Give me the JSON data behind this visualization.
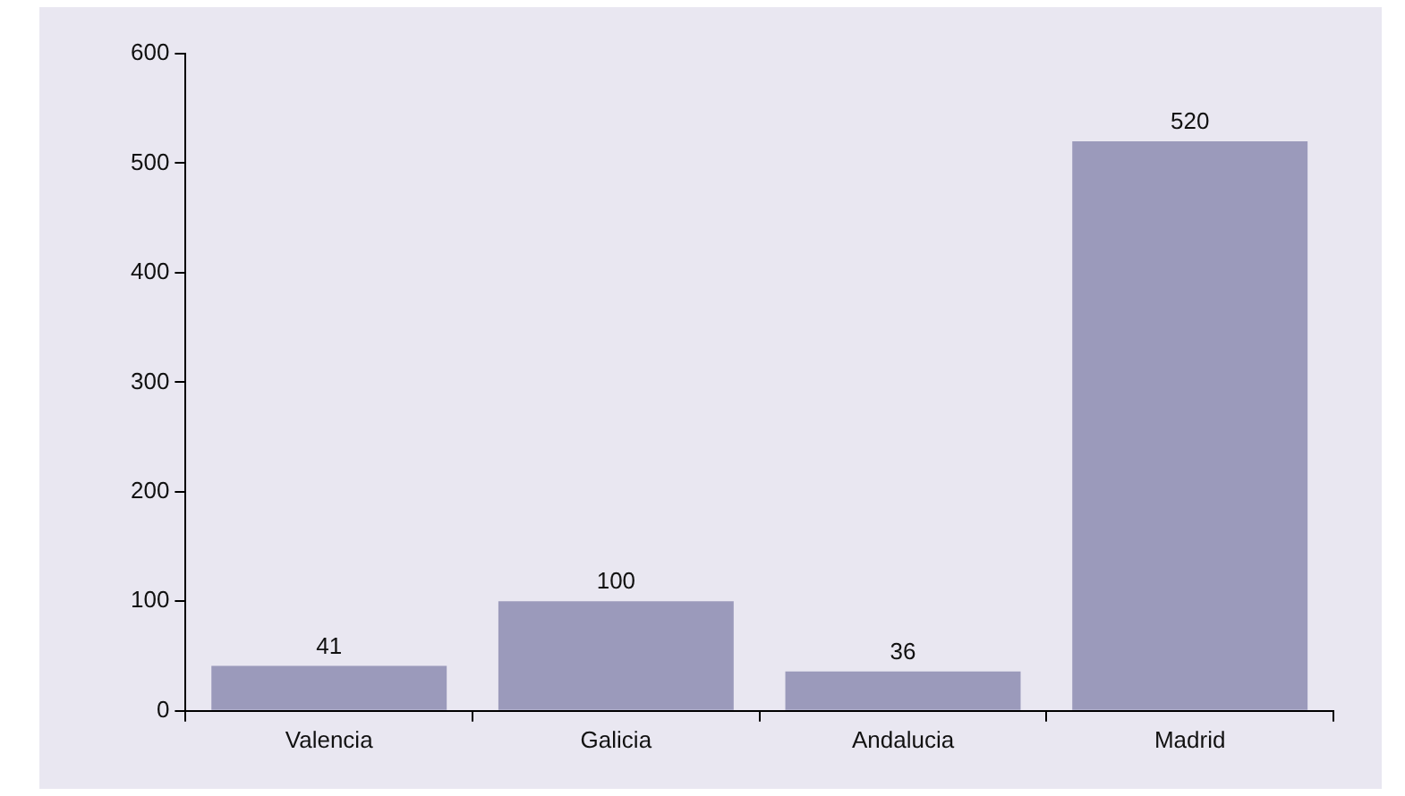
{
  "chart_data": {
    "type": "bar",
    "categories": [
      "Valencia",
      "Galicia",
      "Andalucia",
      "Madrid"
    ],
    "values": [
      41,
      100,
      36,
      520
    ],
    "color": "#9b9abb",
    "ylim": [
      0,
      600
    ],
    "yticks": [
      0,
      100,
      200,
      300,
      400,
      500,
      600
    ],
    "grid": false,
    "legend": false,
    "data_labels": true
  }
}
